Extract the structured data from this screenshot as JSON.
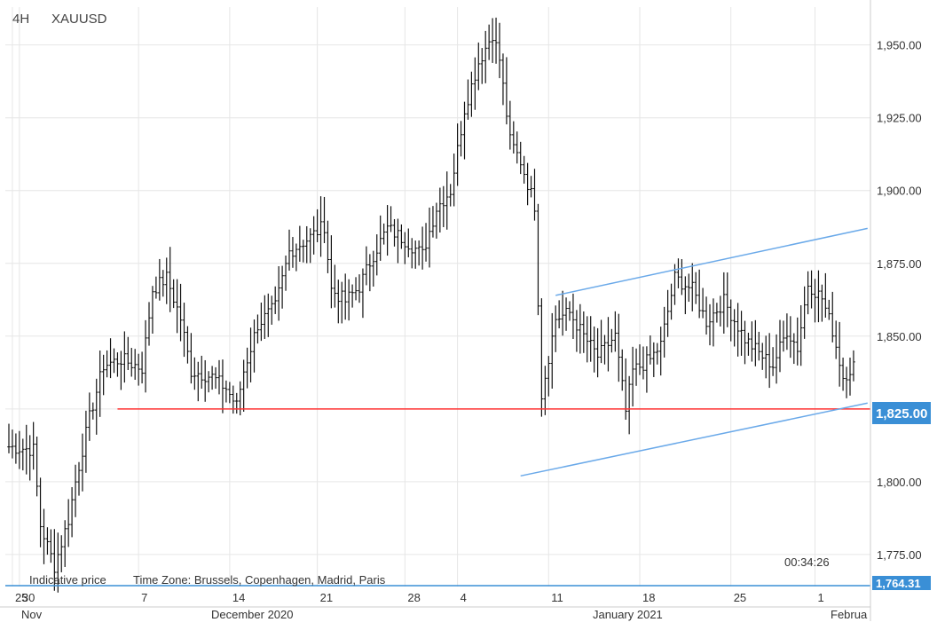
{
  "header": {
    "timeframe": "4H",
    "symbol": "XAUUSD"
  },
  "footer": {
    "indicative": "Indicative price",
    "timezone": "Time Zone: Brussels, Copenhagen, Madrid, Paris",
    "countdown": "00:34:26"
  },
  "badges": {
    "level_label": "1,825.00",
    "bottom_label": "1,764.31"
  },
  "colors": {
    "bar": "#111111",
    "support": "#ff3333",
    "channel": "#6aa9e9",
    "badge": "#3a8fd6",
    "grid": "#e6e6e6"
  },
  "chart_data": {
    "type": "ohlc",
    "title": "XAUUSD",
    "timeframe": "4H",
    "ylim": [
      1764,
      1963
    ],
    "grid": true,
    "yticks": [
      1775,
      1800,
      1825,
      1850,
      1875,
      1900,
      1925,
      1950
    ],
    "ytick_labels": [
      "1,775.00",
      "1,800.00",
      "1,825.00",
      "1,850.00",
      "1,875.00",
      "1,900.00",
      "1,925.00",
      "1,950.00"
    ],
    "xticks": [
      "25",
      "30",
      "7",
      "14",
      "21",
      "28",
      "4",
      "11",
      "18",
      "25",
      "1"
    ],
    "month_labels": [
      "Nov",
      "December 2020",
      "January 2021",
      "Februa"
    ],
    "horizontal_levels": [
      {
        "name": "support",
        "value": 1825
      }
    ],
    "channel": {
      "upper": [
        {
          "bar": 156,
          "price": 1864
        },
        {
          "bar": 245,
          "price": 1887
        }
      ],
      "lower": [
        {
          "bar": 146,
          "price": 1802
        },
        {
          "bar": 245,
          "price": 1827
        }
      ]
    },
    "series_keypoints": [
      [
        0,
        1812
      ],
      [
        7,
        1811
      ],
      [
        9,
        1785
      ],
      [
        13,
        1771
      ],
      [
        17,
        1787
      ],
      [
        19,
        1800
      ],
      [
        23,
        1822
      ],
      [
        27,
        1840
      ],
      [
        32,
        1842
      ],
      [
        38,
        1839
      ],
      [
        41,
        1866
      ],
      [
        45,
        1870
      ],
      [
        49,
        1856
      ],
      [
        52,
        1838
      ],
      [
        58,
        1836
      ],
      [
        62,
        1832
      ],
      [
        65,
        1826
      ],
      [
        67,
        1838
      ],
      [
        71,
        1854
      ],
      [
        76,
        1860
      ],
      [
        80,
        1879
      ],
      [
        86,
        1884
      ],
      [
        90,
        1888
      ],
      [
        92,
        1866
      ],
      [
        96,
        1862
      ],
      [
        100,
        1867
      ],
      [
        104,
        1878
      ],
      [
        108,
        1887
      ],
      [
        113,
        1883
      ],
      [
        118,
        1878
      ],
      [
        122,
        1894
      ],
      [
        126,
        1900
      ],
      [
        130,
        1928
      ],
      [
        134,
        1944
      ],
      [
        138,
        1954
      ],
      [
        140,
        1945
      ],
      [
        143,
        1917
      ],
      [
        146,
        1910
      ],
      [
        150,
        1895
      ],
      [
        152,
        1830
      ],
      [
        156,
        1856
      ],
      [
        160,
        1858
      ],
      [
        164,
        1850
      ],
      [
        168,
        1843
      ],
      [
        173,
        1850
      ],
      [
        176,
        1824
      ],
      [
        178,
        1838
      ],
      [
        183,
        1842
      ],
      [
        186,
        1847
      ],
      [
        190,
        1870
      ],
      [
        195,
        1866
      ],
      [
        199,
        1855
      ],
      [
        204,
        1862
      ],
      [
        210,
        1849
      ],
      [
        215,
        1843
      ],
      [
        218,
        1840
      ],
      [
        222,
        1852
      ],
      [
        225,
        1846
      ],
      [
        228,
        1868
      ],
      [
        232,
        1863
      ],
      [
        235,
        1852
      ],
      [
        238,
        1836
      ],
      [
        241,
        1840
      ]
    ]
  }
}
